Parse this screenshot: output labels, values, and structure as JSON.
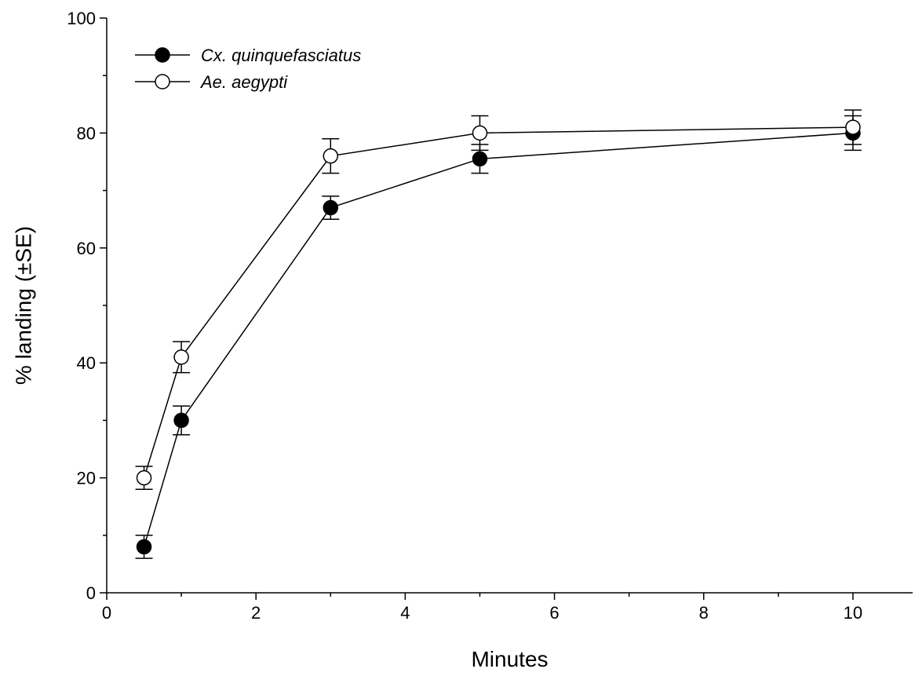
{
  "chart_data": {
    "type": "line",
    "title": "",
    "xlabel": "Minutes",
    "ylabel": "% landing (±SE)",
    "xlim": [
      0,
      10.8
    ],
    "ylim": [
      0,
      100
    ],
    "x_ticks": [
      "0",
      "2",
      "4",
      "6",
      "8",
      "10"
    ],
    "y_ticks": [
      "0",
      "20",
      "40",
      "60",
      "80",
      "100"
    ],
    "grid": false,
    "legend_position": "top-left",
    "series": [
      {
        "name": "Cx. quinquefasciatus",
        "marker": "filled-circle",
        "color": "#000000",
        "x": [
          0.5,
          1,
          3,
          5,
          10
        ],
        "y": [
          8,
          30,
          67,
          75.5,
          80
        ],
        "se": [
          2,
          2.5,
          2,
          2.5,
          3
        ]
      },
      {
        "name": "Ae. aegypti",
        "marker": "open-circle",
        "color": "#000000",
        "x": [
          0.5,
          1,
          3,
          5,
          10
        ],
        "y": [
          20,
          41,
          76,
          80,
          81
        ],
        "se": [
          2,
          2.7,
          3,
          3,
          3
        ]
      }
    ]
  }
}
